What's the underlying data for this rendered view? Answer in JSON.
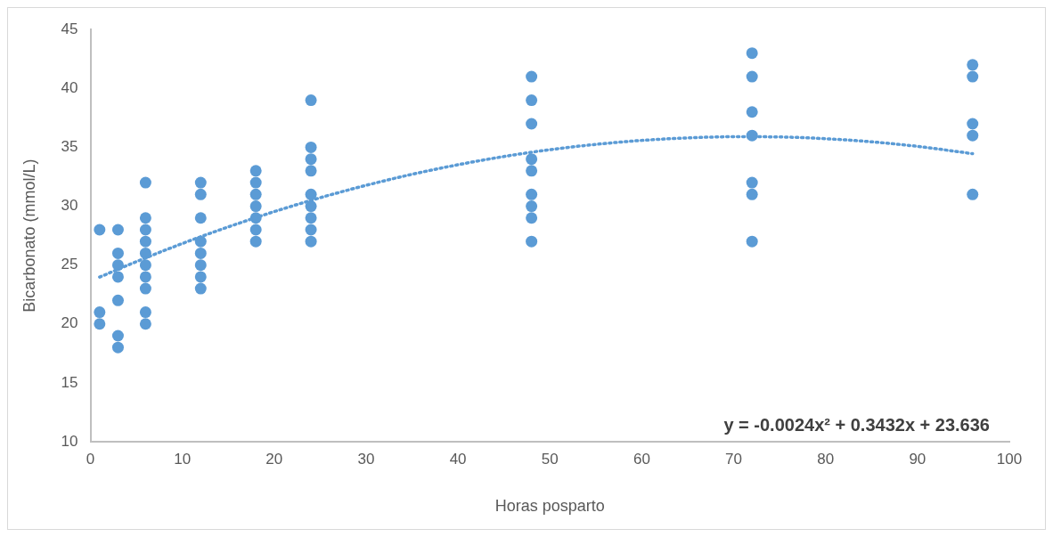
{
  "chart_data": {
    "type": "scatter",
    "xlabel": "Horas posparto",
    "ylabel": "Bicarbonato (mmol/L)",
    "xlim": [
      0,
      100
    ],
    "xticks": [
      0,
      10,
      20,
      30,
      40,
      50,
      60,
      70,
      80,
      90,
      100
    ],
    "ylim": [
      10,
      45
    ],
    "yticks": [
      10,
      15,
      20,
      25,
      30,
      35,
      40,
      45
    ],
    "grid": false,
    "legend": false,
    "marker": "circle",
    "series": [
      {
        "color": "#5b9bd5",
        "x": [
          1,
          1,
          1,
          3,
          3,
          3,
          3,
          3,
          3,
          3,
          6,
          6,
          6,
          6,
          6,
          6,
          6,
          6,
          6,
          6,
          12,
          12,
          12,
          12,
          12,
          12,
          12,
          12,
          18,
          18,
          18,
          18,
          18,
          18,
          18,
          24,
          24,
          24,
          24,
          24,
          24,
          24,
          24,
          24,
          48,
          48,
          48,
          48,
          48,
          48,
          48,
          48,
          48,
          72,
          72,
          72,
          72,
          72,
          72,
          72,
          96,
          96,
          96,
          96,
          96
        ],
        "values": [
          28,
          21,
          20,
          28,
          26,
          25,
          24,
          22,
          19,
          18,
          32,
          29,
          28,
          27,
          26,
          25,
          24,
          23,
          21,
          20,
          32,
          31,
          29,
          27,
          26,
          25,
          24,
          23,
          33,
          32,
          31,
          30,
          29,
          28,
          27,
          39,
          35,
          34,
          33,
          31,
          30,
          29,
          28,
          27,
          41,
          39,
          37,
          34,
          33,
          31,
          30,
          29,
          27,
          43,
          41,
          38,
          36,
          32,
          31,
          27,
          42,
          41,
          37,
          36,
          31
        ]
      },
      {
        "type": "line",
        "color": "#5b9bd5",
        "line_style": "dotted",
        "marker": "none",
        "x": [
          1,
          5,
          10,
          15,
          20,
          25,
          30,
          35,
          40,
          45,
          50,
          55,
          60,
          65,
          70,
          75,
          80,
          85,
          90,
          96
        ],
        "values": [
          23.98,
          25.29,
          26.83,
          28.24,
          29.54,
          30.72,
          31.77,
          32.71,
          33.52,
          34.22,
          34.8,
          35.25,
          35.59,
          35.8,
          35.9,
          35.88,
          35.73,
          35.47,
          35.08,
          34.46
        ]
      }
    ],
    "annotations": [
      "y = -0.0024x² + 0.3432x + 23.636"
    ]
  }
}
